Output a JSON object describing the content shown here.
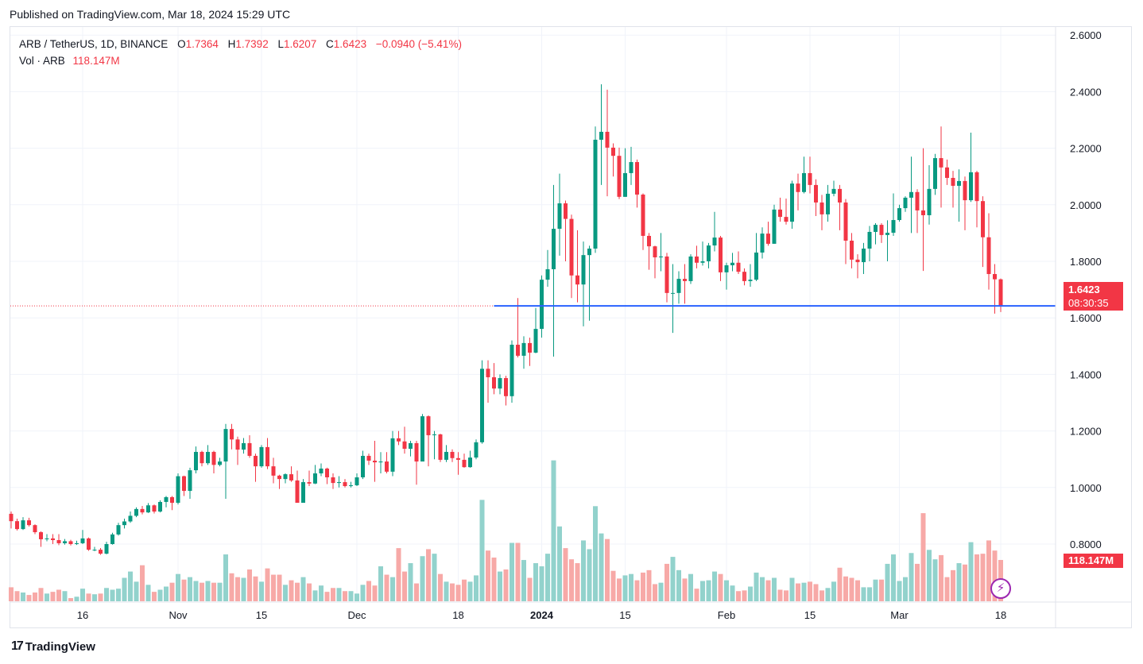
{
  "published": "Published on TradingView.com, Mar 18, 2024 15:29 UTC",
  "legend": {
    "symbol": "ARB / TetherUS, 1D, BINANCE",
    "o_label": "O",
    "o": "1.7364",
    "h_label": "H",
    "h": "1.7392",
    "l_label": "L",
    "l": "1.6207",
    "c_label": "C",
    "c": "1.6423",
    "change": "−0.0940 (−5.41%)",
    "vol_label": "Vol · ARB",
    "vol": "118.147M"
  },
  "price_badge": {
    "price": "1.6423",
    "countdown": "08:30:35"
  },
  "volume_badge": "118.147M",
  "logo_text": "TradingView",
  "icons": {
    "logo": "tradingview-logo-icon",
    "bolt": "lightning-icon"
  },
  "colors": {
    "up": "#089981",
    "down": "#f23645",
    "vol_up": "#92d2cc",
    "vol_down": "#f7a9a7",
    "level_line": "#2962ff",
    "grid": "#f0f3fa"
  },
  "chart_data": {
    "type": "candlestick",
    "title": "ARB / TetherUS, 1D, BINANCE",
    "first_date": "2023-10-04",
    "last_date": "2024-03-18",
    "ylim": [
      0.6,
      2.65
    ],
    "y_ticks": [
      "2.6000",
      "2.4000",
      "2.2000",
      "2.0000",
      "1.8000",
      "1.6000",
      "1.4000",
      "1.2000",
      "1.0000",
      "0.8000"
    ],
    "x_ticks": [
      {
        "label": "16",
        "date": "2023-10-16"
      },
      {
        "label": "Nov",
        "date": "2023-11-01"
      },
      {
        "label": "15",
        "date": "2023-11-15"
      },
      {
        "label": "Dec",
        "date": "2023-12-01"
      },
      {
        "label": "18",
        "date": "2023-12-18"
      },
      {
        "label": "2024",
        "date": "2024-01-01",
        "bold": true
      },
      {
        "label": "15",
        "date": "2024-01-15"
      },
      {
        "label": "Feb",
        "date": "2024-02-01"
      },
      {
        "label": "15",
        "date": "2024-02-15"
      },
      {
        "label": "Mar",
        "date": "2024-03-01"
      },
      {
        "label": "18",
        "date": "2024-03-18"
      }
    ],
    "grid": true,
    "horizontal_level": {
      "price": 1.6423,
      "from_date": "2023-12-24"
    },
    "first_open": 0.907,
    "close": [
      0.881,
      0.853,
      0.884,
      0.867,
      0.842,
      0.817,
      0.82,
      0.814,
      0.803,
      0.81,
      0.8,
      0.803,
      0.82,
      0.78,
      0.78,
      0.766,
      0.8,
      0.834,
      0.867,
      0.88,
      0.9,
      0.924,
      0.912,
      0.937,
      0.915,
      0.949,
      0.966,
      0.946,
      1.04,
      0.988,
      1.061,
      1.126,
      1.086,
      1.126,
      1.08,
      1.092,
      1.207,
      1.17,
      1.134,
      1.157,
      1.112,
      1.075,
      1.143,
      1.075,
      1.042,
      1.03,
      1.047,
      1.025,
      0.946,
      1.019,
      1.014,
      1.05,
      1.067,
      1.036,
      1.016,
      1.019,
      1.005,
      1.008,
      1.036,
      1.112,
      1.095,
      1.089,
      1.092,
      1.056,
      1.174,
      1.163,
      1.137,
      1.157,
      1.092,
      1.252,
      1.185,
      1.188,
      1.098,
      1.126,
      1.104,
      1.098,
      1.072,
      1.106,
      1.16,
      1.42,
      1.39,
      1.35,
      1.387,
      1.323,
      1.505,
      1.466,
      1.511,
      1.477,
      1.561,
      1.735,
      1.772,
      1.915,
      2.005,
      1.95,
      1.75,
      1.718,
      1.822,
      1.845,
      2.23,
      2.258,
      2.202,
      2.173,
      2.028,
      2.112,
      2.151,
      2.036,
      1.89,
      1.853,
      1.814,
      1.817,
      1.688,
      1.688,
      1.738,
      1.73,
      1.817,
      1.795,
      1.8,
      1.856,
      1.884,
      1.761,
      1.786,
      1.795,
      1.763,
      1.73,
      1.735,
      1.831,
      1.898,
      1.862,
      1.983,
      1.957,
      1.94,
      2.075,
      2.045,
      2.112,
      2.07,
      2.008,
      1.966,
      2.039,
      2.056,
      2.008,
      1.873,
      1.806,
      1.797,
      1.845,
      1.904,
      1.929,
      1.893,
      1.901,
      1.946,
      1.988,
      2.025,
      2.045,
      1.98,
      1.963,
      2.056,
      2.165,
      2.132,
      2.095,
      2.067,
      2.084,
      2.016,
      2.115,
      2.013,
      1.885,
      1.755,
      1.7364,
      1.6423
    ],
    "high": [
      0.915,
      0.89,
      0.895,
      0.893,
      0.87,
      0.845,
      0.835,
      0.835,
      0.835,
      0.818,
      0.815,
      0.812,
      0.85,
      0.823,
      0.79,
      0.786,
      0.808,
      0.84,
      0.875,
      0.89,
      0.915,
      0.93,
      0.935,
      0.945,
      0.94,
      0.955,
      0.97,
      0.97,
      1.05,
      1.042,
      1.07,
      1.145,
      1.13,
      1.15,
      1.13,
      1.105,
      1.225,
      1.225,
      1.18,
      1.175,
      1.185,
      1.12,
      1.15,
      1.175,
      1.105,
      1.045,
      1.05,
      1.075,
      1.06,
      1.03,
      1.06,
      1.08,
      1.085,
      1.07,
      1.05,
      1.04,
      1.03,
      1.02,
      1.05,
      1.13,
      1.12,
      1.165,
      1.125,
      1.125,
      1.2,
      1.2,
      1.215,
      1.165,
      1.165,
      1.26,
      1.255,
      1.2,
      1.19,
      1.15,
      1.135,
      1.125,
      1.12,
      1.13,
      1.17,
      1.45,
      1.45,
      1.44,
      1.4,
      1.395,
      1.52,
      1.67,
      1.535,
      1.53,
      1.635,
      1.75,
      1.84,
      2.07,
      2.11,
      2.015,
      1.965,
      1.91,
      1.87,
      1.855,
      2.277,
      2.426,
      2.407,
      2.217,
      2.202,
      2.2,
      2.205,
      2.16,
      2.04,
      1.9,
      1.855,
      1.9,
      1.83,
      1.79,
      1.765,
      1.79,
      1.825,
      1.855,
      1.87,
      1.865,
      1.975,
      1.89,
      1.795,
      1.83,
      1.835,
      1.775,
      1.79,
      1.9,
      1.92,
      1.94,
      2.0,
      2.025,
      2.022,
      2.085,
      2.11,
      2.17,
      2.17,
      2.09,
      2.035,
      2.07,
      2.085,
      2.07,
      2.02,
      1.9,
      1.825,
      1.865,
      1.925,
      1.935,
      1.935,
      1.945,
      2.04,
      2.0,
      2.03,
      2.17,
      2.055,
      2.2,
      2.14,
      2.18,
      2.277,
      2.16,
      2.12,
      2.125,
      2.1,
      2.255,
      2.12,
      2.03,
      1.97,
      1.79,
      1.7392
    ],
    "low": [
      0.855,
      0.848,
      0.85,
      0.862,
      0.835,
      0.79,
      0.81,
      0.8,
      0.796,
      0.798,
      0.795,
      0.797,
      0.8,
      0.776,
      0.775,
      0.762,
      0.764,
      0.798,
      0.83,
      0.855,
      0.875,
      0.895,
      0.905,
      0.91,
      0.908,
      0.912,
      0.93,
      0.92,
      0.94,
      0.97,
      0.96,
      1.05,
      1.075,
      1.08,
      1.05,
      1.075,
      0.96,
      1.135,
      1.08,
      1.12,
      1.105,
      1.02,
      1.07,
      1.065,
      1.015,
      0.995,
      1.015,
      1.02,
      0.946,
      0.946,
      1.005,
      1.012,
      1.04,
      1.012,
      0.995,
      1.0,
      1.0,
      1.0,
      1.005,
      1.03,
      1.08,
      1.02,
      1.05,
      1.05,
      1.04,
      1.15,
      1.12,
      1.11,
      1.01,
      1.092,
      1.075,
      1.1,
      1.09,
      1.09,
      1.09,
      1.045,
      1.07,
      1.07,
      1.1,
      1.155,
      1.3,
      1.33,
      1.33,
      1.29,
      1.3,
      1.46,
      1.42,
      1.43,
      1.475,
      1.53,
      1.71,
      1.463,
      1.82,
      1.8,
      1.67,
      1.655,
      1.57,
      1.59,
      1.83,
      2.07,
      2.03,
      2.1,
      2.02,
      2.028,
      2.07,
      1.99,
      1.84,
      1.77,
      1.74,
      1.765,
      1.655,
      1.547,
      1.65,
      1.65,
      1.72,
      1.775,
      1.785,
      1.775,
      1.835,
      1.73,
      1.7,
      1.765,
      1.755,
      1.715,
      1.71,
      1.73,
      1.81,
      1.855,
      1.862,
      1.94,
      1.93,
      1.915,
      1.98,
      2.04,
      2.04,
      1.96,
      1.91,
      1.94,
      2.03,
      1.91,
      1.79,
      1.775,
      1.74,
      1.755,
      1.8,
      1.86,
      1.865,
      1.8,
      1.89,
      1.94,
      1.975,
      1.9,
      1.9,
      1.766,
      1.93,
      2.035,
      1.99,
      2.07,
      1.99,
      1.94,
      1.91,
      2.01,
      1.92,
      1.78,
      1.7,
      1.615,
      1.6207
    ],
    "volume_unit": "M",
    "volume": [
      40,
      29,
      25,
      18,
      25,
      38,
      22,
      27,
      33,
      29,
      9,
      13,
      36,
      22,
      20,
      22,
      38,
      33,
      36,
      67,
      85,
      56,
      103,
      47,
      27,
      33,
      42,
      53,
      78,
      62,
      69,
      58,
      53,
      58,
      53,
      53,
      134,
      80,
      69,
      67,
      91,
      71,
      56,
      94,
      76,
      76,
      47,
      60,
      53,
      69,
      51,
      31,
      45,
      27,
      38,
      38,
      29,
      29,
      22,
      47,
      58,
      45,
      100,
      76,
      69,
      152,
      85,
      109,
      51,
      129,
      149,
      136,
      78,
      56,
      51,
      47,
      62,
      56,
      74,
      290,
      145,
      125,
      85,
      91,
      167,
      167,
      118,
      67,
      109,
      100,
      136,
      403,
      214,
      152,
      120,
      109,
      174,
      149,
      272,
      194,
      178,
      87,
      65,
      74,
      78,
      60,
      82,
      89,
      49,
      53,
      107,
      127,
      89,
      65,
      78,
      36,
      58,
      60,
      85,
      78,
      60,
      45,
      29,
      31,
      42,
      82,
      69,
      60,
      67,
      33,
      31,
      67,
      51,
      53,
      56,
      49,
      31,
      38,
      56,
      96,
      71,
      67,
      60,
      40,
      40,
      62,
      62,
      107,
      134,
      58,
      69,
      138,
      107,
      252,
      147,
      120,
      132,
      69,
      89,
      109,
      105,
      169,
      134,
      136,
      174,
      145,
      118.147
    ]
  }
}
